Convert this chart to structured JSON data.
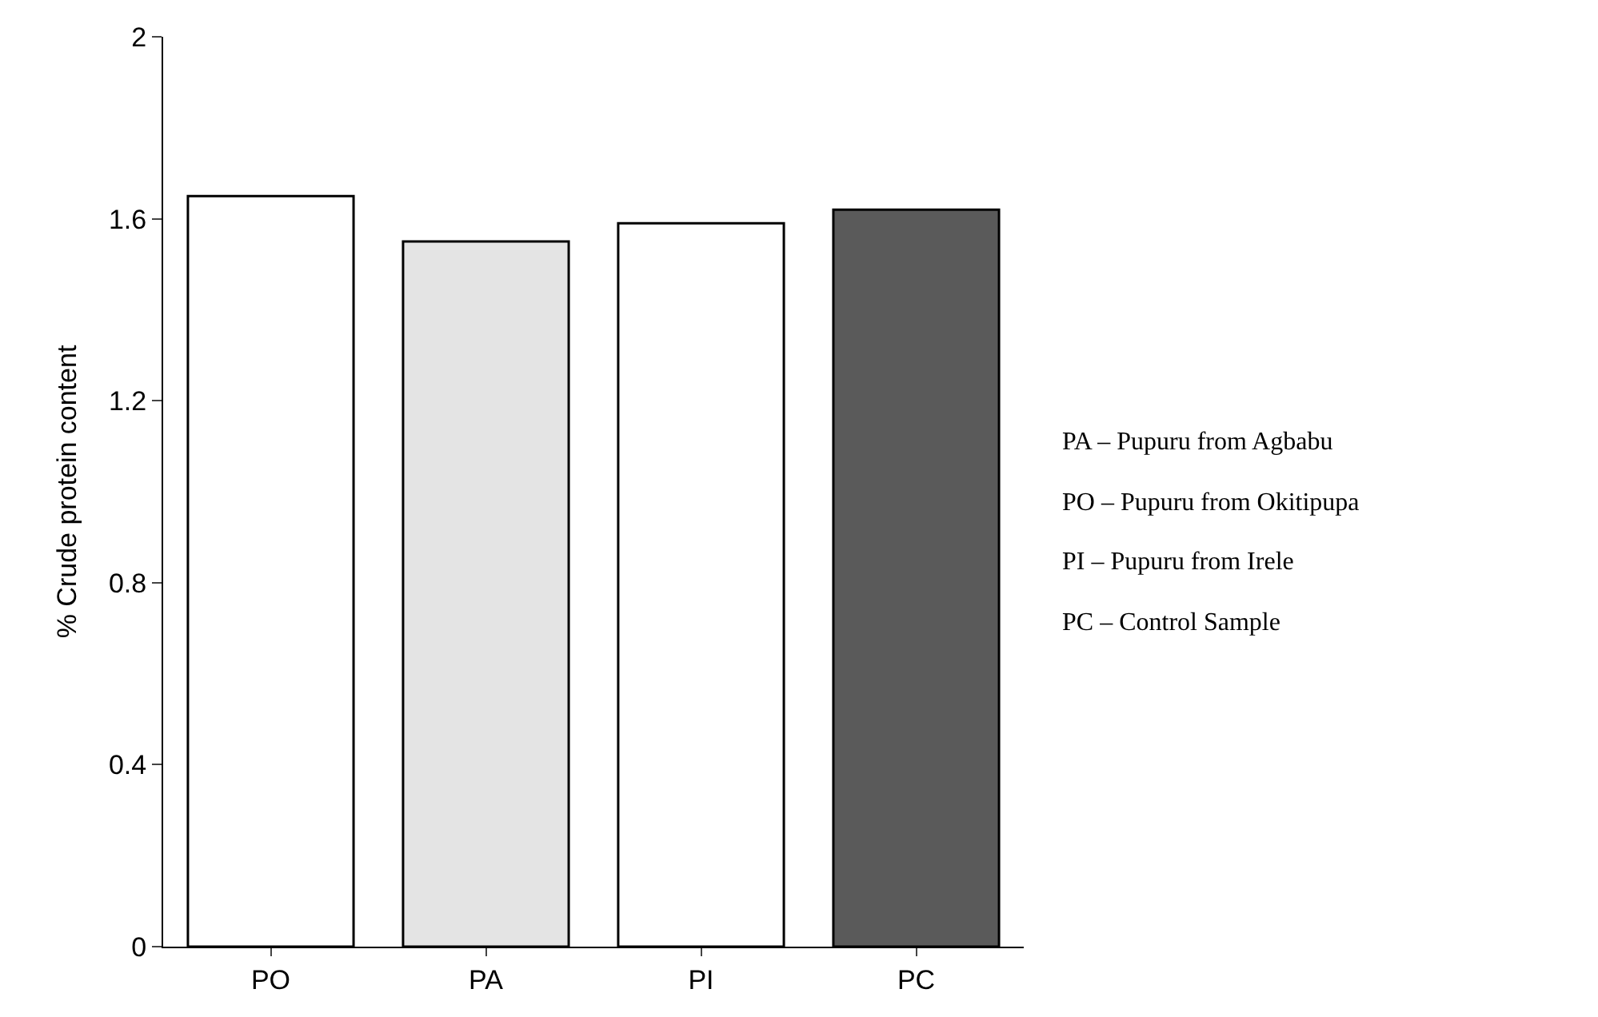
{
  "chart_data": {
    "type": "bar",
    "ylabel": "% Crude protein content",
    "categories": [
      "PO",
      "PA",
      "PI",
      "PC"
    ],
    "values": [
      1.65,
      1.55,
      1.59,
      1.62
    ],
    "colors": [
      "#ffffff",
      "#e4e4e4",
      "#ffffff",
      "#5a5a5a"
    ],
    "ylim": [
      0,
      2
    ],
    "yticks": [
      0,
      0.4,
      0.8,
      1.2,
      1.6,
      2
    ],
    "annotations": [
      "PA – Pupuru from Agbabu",
      "PO – Pupuru from Okitipupa",
      "PI – Pupuru from Irele",
      "PC – Control Sample"
    ]
  }
}
